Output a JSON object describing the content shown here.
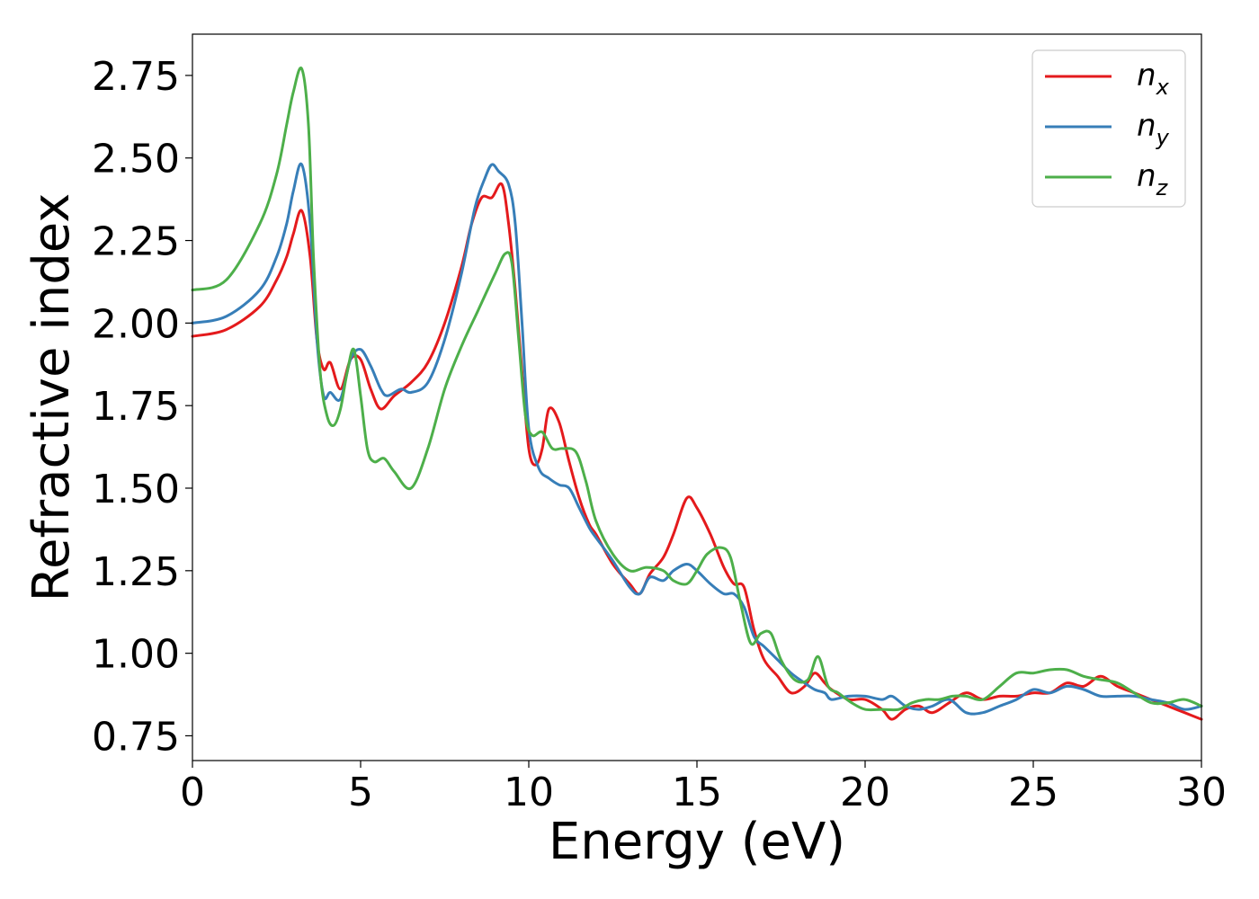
{
  "chart_data": {
    "type": "line",
    "title": "",
    "xlabel": "Energy (eV)",
    "ylabel": "Refractive index",
    "xlim": [
      0,
      30
    ],
    "ylim": [
      0.675,
      2.875
    ],
    "xticks": [
      0,
      5,
      10,
      15,
      20,
      25,
      30
    ],
    "xtick_labels": [
      "0",
      "5",
      "10",
      "15",
      "20",
      "25",
      "30"
    ],
    "yticks": [
      0.75,
      1.0,
      1.25,
      1.5,
      1.75,
      2.0,
      2.25,
      2.5,
      2.75
    ],
    "ytick_labels": [
      "0.75",
      "1.00",
      "1.25",
      "1.50",
      "1.75",
      "2.00",
      "2.25",
      "2.50",
      "2.75"
    ],
    "grid": false,
    "legend_position": "top-right",
    "series": [
      {
        "name": "n_x",
        "label_base": "n",
        "label_sub": "x",
        "color": "#e41a1c",
        "x": [
          0,
          1,
          2,
          2.5,
          2.8,
          3.0,
          3.25,
          3.5,
          3.7,
          3.9,
          4.1,
          4.4,
          4.7,
          5.0,
          5.3,
          5.6,
          6.0,
          6.5,
          7.0,
          7.5,
          8.0,
          8.3,
          8.6,
          8.9,
          9.2,
          9.4,
          9.6,
          9.8,
          10.0,
          10.2,
          10.4,
          10.6,
          10.9,
          11.2,
          11.5,
          11.8,
          12.0,
          12.5,
          13.0,
          13.3,
          13.6,
          14.0,
          14.3,
          14.7,
          15.0,
          15.4,
          15.8,
          16.1,
          16.4,
          16.7,
          17.0,
          17.4,
          17.8,
          18.2,
          18.5,
          18.8,
          19.0,
          19.5,
          20.0,
          20.5,
          20.8,
          21.2,
          21.6,
          22.0,
          22.5,
          23.0,
          23.5,
          24.0,
          24.5,
          25.0,
          25.5,
          26.0,
          26.5,
          27.0,
          27.5,
          28.0,
          28.5,
          29.0,
          29.5,
          30.0
        ],
        "y": [
          1.96,
          1.98,
          2.05,
          2.13,
          2.2,
          2.27,
          2.34,
          2.2,
          1.95,
          1.86,
          1.88,
          1.8,
          1.89,
          1.89,
          1.8,
          1.74,
          1.78,
          1.82,
          1.88,
          2.0,
          2.17,
          2.3,
          2.38,
          2.38,
          2.42,
          2.3,
          2.1,
          1.85,
          1.62,
          1.57,
          1.62,
          1.74,
          1.7,
          1.58,
          1.47,
          1.39,
          1.36,
          1.27,
          1.21,
          1.18,
          1.24,
          1.29,
          1.36,
          1.47,
          1.44,
          1.36,
          1.26,
          1.21,
          1.2,
          1.07,
          0.98,
          0.93,
          0.88,
          0.9,
          0.94,
          0.91,
          0.89,
          0.86,
          0.86,
          0.83,
          0.8,
          0.83,
          0.84,
          0.82,
          0.85,
          0.88,
          0.86,
          0.87,
          0.87,
          0.88,
          0.88,
          0.91,
          0.9,
          0.93,
          0.9,
          0.88,
          0.86,
          0.84,
          0.82,
          0.8
        ]
      },
      {
        "name": "n_y",
        "label_base": "n",
        "label_sub": "y",
        "color": "#377eb8",
        "x": [
          0,
          1,
          2,
          2.5,
          2.8,
          3.0,
          3.25,
          3.5,
          3.7,
          3.9,
          4.1,
          4.4,
          4.7,
          5.0,
          5.3,
          5.6,
          5.8,
          6.2,
          6.5,
          7.0,
          7.5,
          8.0,
          8.4,
          8.7,
          8.9,
          9.1,
          9.4,
          9.6,
          9.8,
          10.0,
          10.3,
          10.6,
          10.9,
          11.2,
          11.5,
          11.8,
          12.0,
          12.5,
          13.0,
          13.3,
          13.6,
          14.0,
          14.3,
          14.7,
          15.0,
          15.4,
          15.8,
          16.1,
          16.4,
          16.7,
          17.0,
          17.4,
          17.8,
          18.2,
          18.5,
          18.8,
          19.0,
          19.5,
          20.0,
          20.5,
          20.8,
          21.2,
          21.6,
          22.0,
          22.5,
          23.0,
          23.5,
          24.0,
          24.5,
          25.0,
          25.5,
          26.0,
          26.5,
          27.0,
          27.5,
          28.0,
          28.5,
          29.0,
          29.5,
          30.0
        ],
        "y": [
          2.0,
          2.02,
          2.1,
          2.2,
          2.3,
          2.4,
          2.48,
          2.3,
          1.95,
          1.78,
          1.79,
          1.77,
          1.89,
          1.92,
          1.87,
          1.8,
          1.78,
          1.8,
          1.79,
          1.82,
          1.95,
          2.15,
          2.35,
          2.44,
          2.48,
          2.46,
          2.42,
          2.3,
          2.0,
          1.68,
          1.56,
          1.53,
          1.51,
          1.5,
          1.44,
          1.38,
          1.35,
          1.28,
          1.2,
          1.18,
          1.23,
          1.22,
          1.25,
          1.27,
          1.25,
          1.21,
          1.18,
          1.18,
          1.14,
          1.05,
          1.02,
          0.98,
          0.94,
          0.91,
          0.89,
          0.88,
          0.86,
          0.87,
          0.87,
          0.86,
          0.87,
          0.84,
          0.83,
          0.84,
          0.86,
          0.82,
          0.82,
          0.84,
          0.86,
          0.89,
          0.88,
          0.9,
          0.89,
          0.87,
          0.87,
          0.87,
          0.86,
          0.85,
          0.83,
          0.84
        ]
      },
      {
        "name": "n_z",
        "label_base": "n",
        "label_sub": "z",
        "color": "#4daf4a",
        "x": [
          0,
          1,
          2,
          2.5,
          2.8,
          3.0,
          3.25,
          3.45,
          3.6,
          3.8,
          4.0,
          4.2,
          4.4,
          4.6,
          4.8,
          5.0,
          5.2,
          5.4,
          5.7,
          6.0,
          6.5,
          7.0,
          7.5,
          8.0,
          8.5,
          9.0,
          9.3,
          9.5,
          9.7,
          9.9,
          10.1,
          10.4,
          10.7,
          11.0,
          11.4,
          11.7,
          12.0,
          12.5,
          13.0,
          13.5,
          14.0,
          14.3,
          14.7,
          15.0,
          15.3,
          15.7,
          16.0,
          16.3,
          16.6,
          16.9,
          17.2,
          17.5,
          17.9,
          18.3,
          18.6,
          18.9,
          19.2,
          19.6,
          20.0,
          20.5,
          21.0,
          21.4,
          21.8,
          22.2,
          22.6,
          23.0,
          23.5,
          24.0,
          24.5,
          25.0,
          25.5,
          26.0,
          26.5,
          27.0,
          27.5,
          28.0,
          28.5,
          29.0,
          29.5,
          30.0
        ],
        "y": [
          2.1,
          2.13,
          2.3,
          2.45,
          2.6,
          2.7,
          2.77,
          2.6,
          2.2,
          1.85,
          1.72,
          1.69,
          1.74,
          1.85,
          1.92,
          1.78,
          1.62,
          1.58,
          1.59,
          1.55,
          1.5,
          1.62,
          1.8,
          1.93,
          2.04,
          2.15,
          2.21,
          2.18,
          1.95,
          1.72,
          1.66,
          1.67,
          1.62,
          1.62,
          1.61,
          1.52,
          1.4,
          1.3,
          1.25,
          1.26,
          1.25,
          1.22,
          1.21,
          1.25,
          1.3,
          1.32,
          1.29,
          1.15,
          1.03,
          1.06,
          1.06,
          0.98,
          0.92,
          0.92,
          0.99,
          0.9,
          0.88,
          0.85,
          0.83,
          0.83,
          0.83,
          0.85,
          0.86,
          0.86,
          0.87,
          0.87,
          0.86,
          0.9,
          0.94,
          0.94,
          0.95,
          0.95,
          0.93,
          0.92,
          0.91,
          0.88,
          0.85,
          0.85,
          0.86,
          0.84
        ]
      }
    ]
  }
}
